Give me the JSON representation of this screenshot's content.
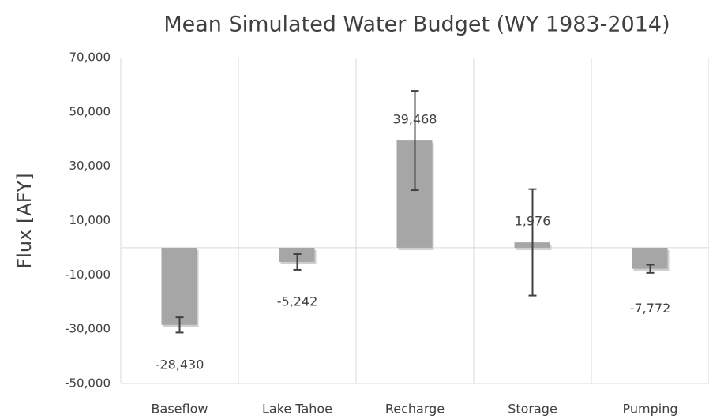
{
  "chart_data": {
    "type": "bar",
    "title": "Mean Simulated Water Budget (WY 1983-2014)",
    "y_label": "Flux [AFY]",
    "categories": [
      "Baseflow",
      "Lake Tahoe",
      "Recharge",
      "Storage",
      "Pumping"
    ],
    "values": [
      -28430,
      -5242,
      39468,
      1976,
      -7772
    ],
    "value_labels": [
      "-28,430",
      "-5,242",
      "39,468",
      "1,976",
      "-7,772"
    ],
    "errors": [
      2800,
      2900,
      18300,
      19600,
      1500
    ],
    "color": "#a6a6a6",
    "ylim": [
      -50000,
      70000
    ],
    "yticks": [
      {
        "value": -50000,
        "label": "-50,000"
      },
      {
        "value": -30000,
        "label": "-30,000"
      },
      {
        "value": -10000,
        "label": "-10,000"
      },
      {
        "value": 10000,
        "label": "10,000"
      },
      {
        "value": 30000,
        "label": "30,000"
      },
      {
        "value": 50000,
        "label": "50,000"
      },
      {
        "value": 70000,
        "label": "70,000"
      }
    ],
    "grid": true
  }
}
